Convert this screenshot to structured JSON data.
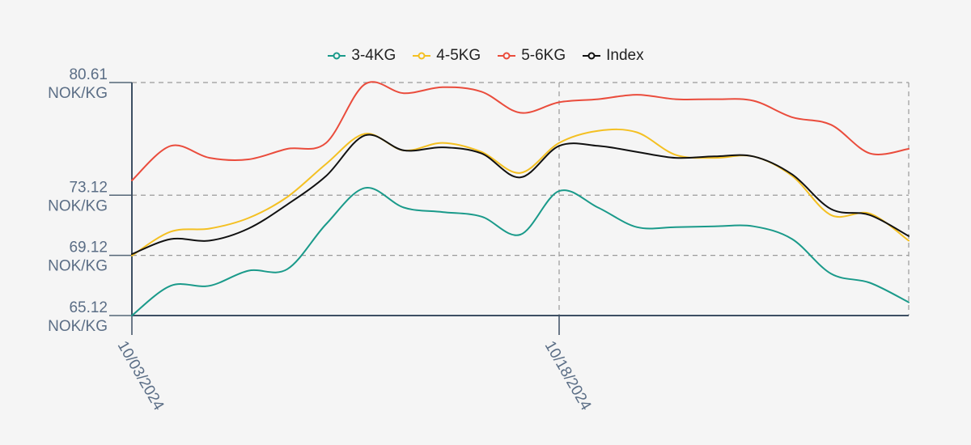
{
  "chart_data": {
    "type": "line",
    "title": "",
    "xlabel": "",
    "ylabel": "",
    "legend_position": "top-center",
    "grid": true,
    "y_unit": "NOK/KG",
    "ylim": [
      65.12,
      80.61
    ],
    "y_ticks": [
      {
        "value": 80.61,
        "label_value": "80.61",
        "label_unit": "NOK/KG"
      },
      {
        "value": 73.12,
        "label_value": "73.12",
        "label_unit": "NOK/KG"
      },
      {
        "value": 69.12,
        "label_value": "69.12",
        "label_unit": "NOK/KG"
      },
      {
        "value": 65.12,
        "label_value": "65.12",
        "label_unit": "NOK/KG"
      }
    ],
    "x_ticks": [
      {
        "index": 0,
        "label": "10/03/2024"
      },
      {
        "index": 11,
        "label": "10/18/2024"
      }
    ],
    "x_count": 21,
    "series": [
      {
        "name": "3-4KG",
        "color": "#1a9a8a",
        "values": [
          65.12,
          67.1,
          67.1,
          68.1,
          68.2,
          71.2,
          73.6,
          72.3,
          72.0,
          71.7,
          70.5,
          73.4,
          72.3,
          71.0,
          71.0,
          71.05,
          71.05,
          70.2,
          67.9,
          67.3,
          66.0
        ]
      },
      {
        "name": "4-5KG",
        "color": "#f4c022",
        "values": [
          69.1,
          70.7,
          70.9,
          71.6,
          73.0,
          75.2,
          77.2,
          76.1,
          76.6,
          76.0,
          74.6,
          76.6,
          77.4,
          77.3,
          75.8,
          75.6,
          75.7,
          74.4,
          71.8,
          71.9,
          70.1
        ]
      },
      {
        "name": "5-6KG",
        "color": "#ea4c3c",
        "values": [
          74.1,
          76.4,
          75.6,
          75.5,
          76.2,
          76.6,
          80.5,
          79.9,
          80.3,
          80.0,
          78.6,
          79.3,
          79.5,
          79.8,
          79.5,
          79.5,
          79.4,
          78.3,
          77.8,
          75.9,
          76.2
        ]
      },
      {
        "name": "Index",
        "color": "#111111",
        "values": [
          69.2,
          70.2,
          70.1,
          70.9,
          72.5,
          74.4,
          77.1,
          76.1,
          76.3,
          75.9,
          74.3,
          76.4,
          76.4,
          76.0,
          75.6,
          75.7,
          75.7,
          74.5,
          72.2,
          71.8,
          70.4
        ]
      }
    ]
  }
}
